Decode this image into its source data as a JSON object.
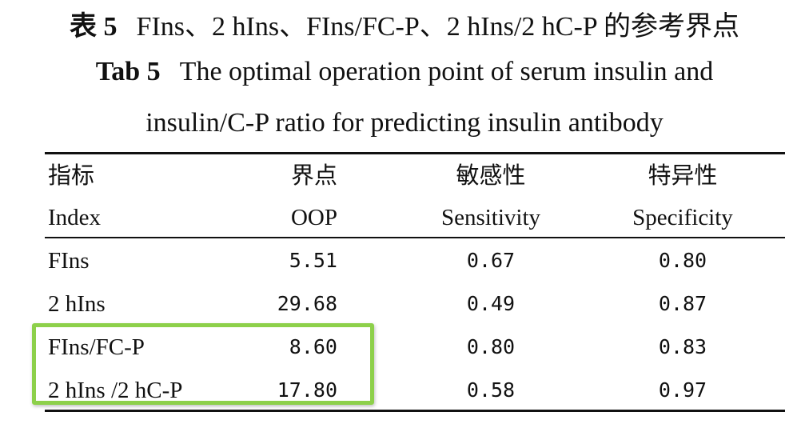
{
  "caption": {
    "cn_label": "表 5",
    "cn_title": "FIns、2 hIns、FIns/FC-P、2 hIns/2 hC-P 的参考界点",
    "en_label": "Tab 5",
    "en_title_line1": "The optimal operation point of serum insulin and",
    "en_title_line2": "insulin/C-P ratio for predicting insulin antibody"
  },
  "table": {
    "headers_cn": [
      "指标",
      "界点",
      "敏感性",
      "特异性"
    ],
    "headers_en": [
      "Index",
      "OOP",
      "Sensitivity",
      "Specificity"
    ],
    "rows": [
      [
        "FIns",
        "5.51",
        "0.67",
        "0.80"
      ],
      [
        "2 hIns",
        "29.68",
        "0.49",
        "0.87"
      ],
      [
        "FIns/FC-P",
        "8.60",
        "0.80",
        "0.83"
      ],
      [
        "2 hIns /2 hC-P",
        "17.80",
        "0.58",
        "0.97"
      ]
    ]
  },
  "highlight": {
    "color": "#8dd04a"
  }
}
